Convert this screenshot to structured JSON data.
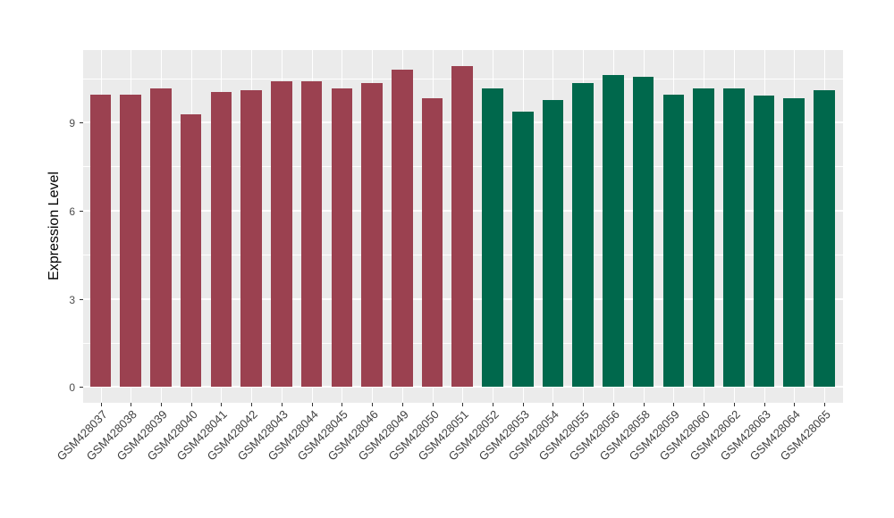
{
  "chart_data": {
    "type": "bar",
    "title": "",
    "xlabel": "",
    "ylabel": "Expression Level",
    "legend_position": "none",
    "grid": true,
    "panel_background": "#EBEBEB",
    "gridline_color": "#FFFFFF",
    "axis_text_color": "#4D4D4D",
    "axis_title_color": "#000000",
    "y_ticks": [
      0,
      3,
      6,
      9
    ],
    "ylim": [
      0,
      11.5
    ],
    "categories": [
      "GSM428037",
      "GSM428038",
      "GSM428039",
      "GSM428040",
      "GSM428041",
      "GSM428042",
      "GSM428043",
      "GSM428044",
      "GSM428045",
      "GSM428046",
      "GSM428049",
      "GSM428050",
      "GSM428051",
      "GSM428052",
      "GSM428053",
      "GSM428054",
      "GSM428055",
      "GSM428056",
      "GSM428058",
      "GSM428059",
      "GSM428060",
      "GSM428062",
      "GSM428063",
      "GSM428064",
      "GSM428065"
    ],
    "values": [
      9.95,
      9.95,
      10.17,
      9.27,
      10.04,
      10.1,
      10.41,
      10.41,
      10.17,
      10.35,
      10.8,
      9.83,
      10.9,
      10.17,
      9.36,
      9.77,
      10.35,
      10.61,
      10.54,
      9.93,
      10.17,
      10.15,
      9.91,
      9.83,
      10.08
    ],
    "bar_groups": [
      0,
      0,
      0,
      0,
      0,
      0,
      0,
      0,
      0,
      0,
      0,
      0,
      0,
      1,
      1,
      1,
      1,
      1,
      1,
      1,
      1,
      1,
      1,
      1,
      1
    ],
    "group_colors": [
      "#9B4150",
      "#00684C"
    ]
  }
}
